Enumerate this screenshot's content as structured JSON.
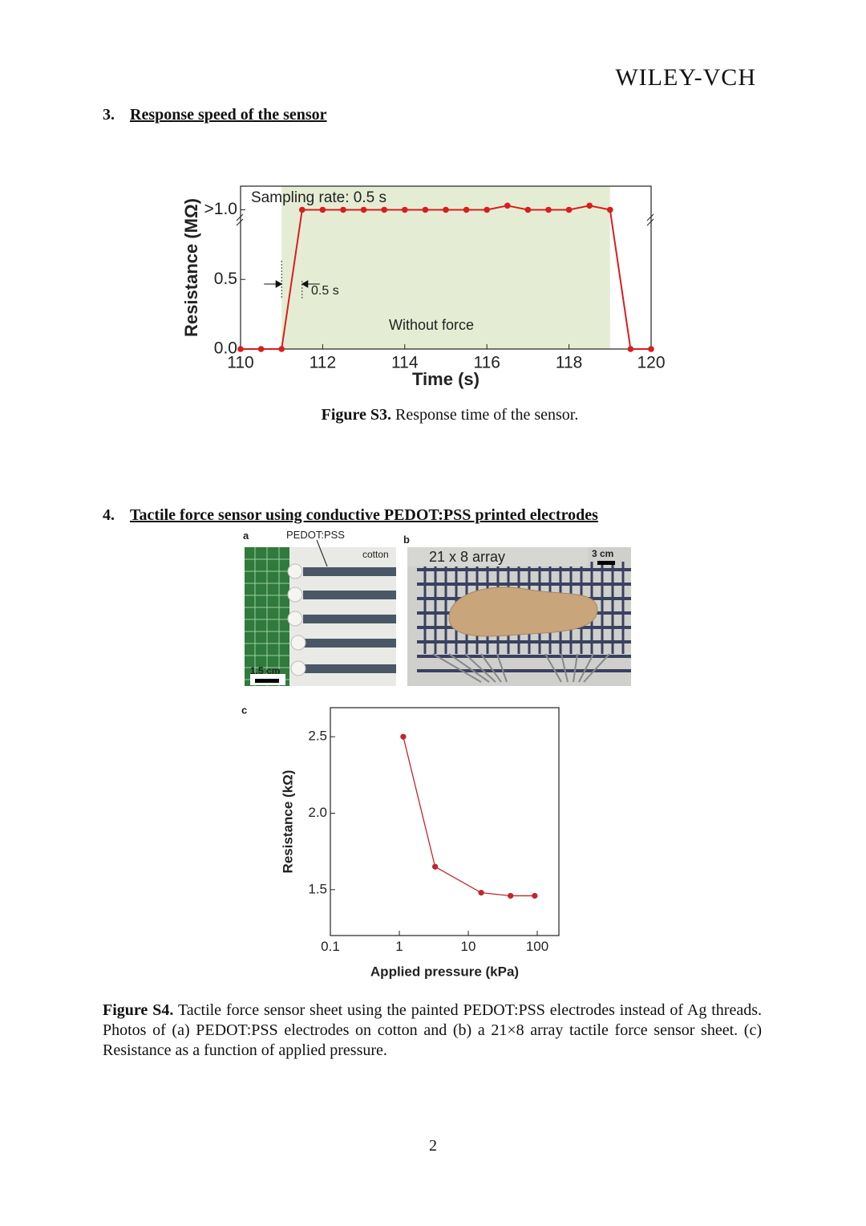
{
  "header": {
    "logo": "WILEY-VCH"
  },
  "sections": [
    {
      "number": "3.",
      "title": "Response speed of the sensor"
    },
    {
      "number": "4.",
      "title": "Tactile force sensor using conductive PEDOT:PSS printed electrodes"
    }
  ],
  "figures": [
    {
      "label": "Figure S3.",
      "caption": "Response time of the sensor."
    },
    {
      "label": "Figure S4.",
      "caption": "Tactile force sensor sheet using the painted PEDOT:PSS electrodes instead of Ag threads. Photos of (a) PEDOT:PSS electrodes on cotton and (b) a 21×8 array tactile force sensor sheet. (c) Resistance as a function of applied pressure."
    }
  ],
  "photos": {
    "a": {
      "panel": "a",
      "labels": [
        "PEDOT:PSS",
        "cotton"
      ],
      "scale_bar": "1.5 cm"
    },
    "b": {
      "panel": "b",
      "labels": [
        "21 x 8 array"
      ],
      "scale_bar": "3 cm"
    }
  },
  "chart_data": [
    {
      "type": "line",
      "x_label": "Time (s)",
      "y_label": "Resistance (MΩ)",
      "annotations": [
        "Sampling rate: 0.5 s",
        "0.5 s",
        "Without force"
      ],
      "x": [
        110,
        110.5,
        111,
        111.5,
        112,
        112.5,
        113,
        113.5,
        114,
        114.5,
        115,
        115.5,
        116,
        116.5,
        117,
        117.5,
        118,
        118.5,
        119,
        119.5,
        120
      ],
      "values": [
        0,
        0,
        0,
        1.0,
        1.0,
        1.0,
        1.0,
        1.0,
        1.0,
        1.0,
        1.0,
        1.0,
        1.0,
        1.03,
        1.0,
        1.0,
        1.0,
        1.03,
        1.0,
        0,
        0
      ],
      "color": "#d81e1e",
      "highlight": {
        "x": [
          111,
          119
        ],
        "color": "#e4edd3"
      },
      "xlim": [
        110,
        120
      ],
      "ylim": [
        0,
        1.17
      ],
      "xticks": [
        110,
        112,
        114,
        116,
        118,
        120
      ],
      "yticks": [
        {
          "value": 0,
          "label": "0.0"
        },
        0.5,
        {
          "value": 1.0,
          "label": ">1.0"
        }
      ]
    },
    {
      "type": "line",
      "panel": "c",
      "x_label": "Applied pressure (kPa)",
      "y_label": "Resistance (kΩ)",
      "x": [
        1.14,
        3.3,
        15.4,
        41,
        92
      ],
      "values": [
        2.5,
        1.65,
        1.48,
        1.46,
        1.46
      ],
      "color": "#c0262b",
      "xscale": "log",
      "xlim": [
        0.1,
        206
      ],
      "ylim": [
        1.2,
        2.69
      ],
      "xticks": [
        0.1,
        1,
        10,
        100
      ],
      "yticks": [
        1.5,
        {
          "value": 2,
          "label": "2.0"
        },
        2.5
      ]
    }
  ],
  "page_number": "2"
}
